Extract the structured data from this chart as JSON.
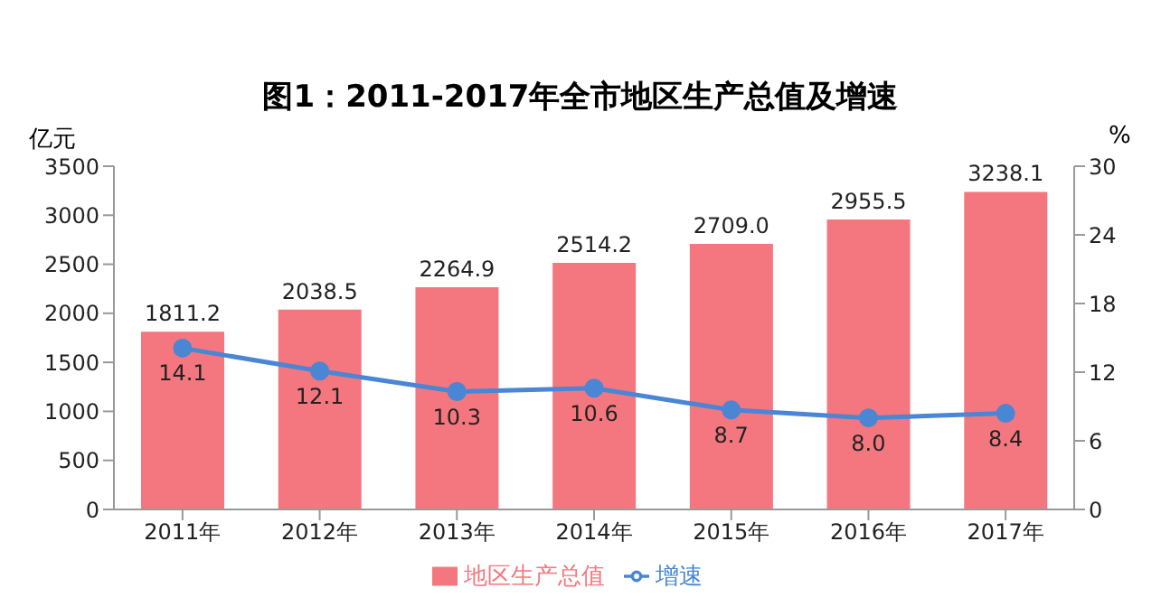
{
  "chart_data": {
    "type": "bar",
    "title": "图1：2011-2017年全市地区生产总值及增速",
    "ylabel": "亿元",
    "y2label": "%",
    "categories": [
      "2011年",
      "2012年",
      "2013年",
      "2014年",
      "2015年",
      "2016年",
      "2017年"
    ],
    "series": [
      {
        "name": "地区生产总值",
        "color": "#f4777f",
        "values": [
          1811.2,
          2038.5,
          2264.9,
          2514.2,
          2709,
          2955.5,
          3238.1
        ],
        "value_labels": [
          "1811.2",
          "2038.5",
          "2264.9",
          "2514.2",
          "2709.0",
          "2955.5",
          "3238.1"
        ]
      },
      {
        "name": "增速",
        "type": "line",
        "axis": "y2",
        "color": "#4a86d4",
        "values": [
          14.1,
          12.1,
          10.3,
          10.6,
          8.7,
          8,
          8.4
        ],
        "value_labels": [
          "14.1",
          "12.1",
          "10.3",
          "10.6",
          "8.7",
          "8.0",
          "8.4"
        ]
      }
    ],
    "ylim": [
      0,
      3500
    ],
    "yticks": [
      0,
      500,
      1000,
      1500,
      2000,
      2500,
      3000,
      3500
    ],
    "y2lim": [
      0,
      30
    ],
    "y2ticks": [
      0,
      6,
      12,
      18,
      24,
      30
    ],
    "legend": "bottom",
    "marker": "circle",
    "grid": false
  }
}
